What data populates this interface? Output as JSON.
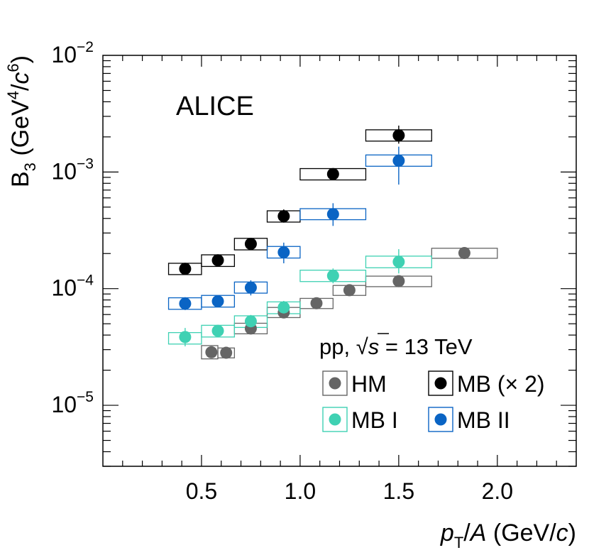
{
  "chart_data": {
    "type": "scatter",
    "title": "",
    "annotation": "ALICE",
    "energy_label": {
      "prefix": "pp, ",
      "sqrt": "√",
      "var": "s",
      "suffix": " = 13 TeV"
    },
    "xlabel": {
      "p": "p",
      "sub": "T",
      "slash": "/",
      "A": "A",
      "unit_pre": " (GeV/",
      "c": "c",
      "unit_post": ")"
    },
    "ylabel": {
      "B": "B",
      "sub": "3",
      "pre": " (GeV",
      "sup1": "4",
      "slash": "/",
      "c": "c",
      "sup2": "6",
      "post": ")"
    },
    "xlim": [
      0.0,
      2.4
    ],
    "ylim_log": [
      3e-06,
      0.01
    ],
    "x_ticks": [
      {
        "value": 0.5,
        "label": "0.5"
      },
      {
        "value": 1.0,
        "label": "1.0"
      },
      {
        "value": 1.5,
        "label": "1.5"
      },
      {
        "value": 2.0,
        "label": "2.0"
      }
    ],
    "y_ticks": [
      {
        "value": 0.01,
        "base": "10",
        "exp": "−2"
      },
      {
        "value": 0.001,
        "base": "10",
        "exp": "−3"
      },
      {
        "value": 0.0001,
        "base": "10",
        "exp": "−4"
      },
      {
        "value": 1e-05,
        "base": "10",
        "exp": "−5"
      }
    ],
    "legend": [
      {
        "series": "HM",
        "label": "HM"
      },
      {
        "series": "MB2",
        "label": "MB (× 2)"
      },
      {
        "series": "MBI",
        "label": "MB I"
      },
      {
        "series": "MBII",
        "label": "MB II"
      }
    ],
    "series": [
      {
        "name": "HM",
        "color": "#656565",
        "points": [
          {
            "x": 0.55,
            "y": 2.85e-05,
            "xlo": 0.5,
            "xhi": 0.583,
            "ylo": 2.5e-05,
            "yhi": 3.25e-05,
            "err_lo": 2.55e-05,
            "err_hi": 3.1e-05
          },
          {
            "x": 0.625,
            "y": 2.82e-05,
            "xlo": 0.583,
            "xhi": 0.667,
            "ylo": 2.55e-05,
            "yhi": 3.1e-05,
            "err_lo": 2.6e-05,
            "err_hi": 3.05e-05
          },
          {
            "x": 0.75,
            "y": 4.55e-05,
            "xlo": 0.667,
            "xhi": 0.833,
            "ylo": 4.1e-05,
            "yhi": 5.05e-05,
            "err_lo": 4.25e-05,
            "err_hi": 4.85e-05
          },
          {
            "x": 0.917,
            "y": 6.25e-05,
            "xlo": 0.833,
            "xhi": 1.0,
            "ylo": 5.65e-05,
            "yhi": 6.9e-05,
            "err_lo": 5.85e-05,
            "err_hi": 6.65e-05
          },
          {
            "x": 1.083,
            "y": 7.5e-05,
            "xlo": 1.0,
            "xhi": 1.167,
            "ylo": 6.75e-05,
            "yhi": 8.25e-05,
            "err_lo": 7.1e-05,
            "err_hi": 7.9e-05
          },
          {
            "x": 1.25,
            "y": 9.7e-05,
            "xlo": 1.167,
            "xhi": 1.333,
            "ylo": 8.75e-05,
            "yhi": 0.0001065,
            "err_lo": 9.2e-05,
            "err_hi": 0.000102
          },
          {
            "x": 1.5,
            "y": 0.000116,
            "xlo": 1.333,
            "xhi": 1.667,
            "ylo": 0.000104,
            "yhi": 0.000128,
            "err_lo": 0.000108,
            "err_hi": 0.000124
          },
          {
            "x": 1.833,
            "y": 0.000202,
            "xlo": 1.667,
            "xhi": 2.0,
            "ylo": 0.000182,
            "yhi": 0.000222,
            "err_lo": 0.000186,
            "err_hi": 0.000218
          }
        ]
      },
      {
        "name": "MB2",
        "color": "#000000",
        "points": [
          {
            "x": 0.417,
            "y": 0.000148,
            "xlo": 0.333,
            "xhi": 0.5,
            "ylo": 0.000132,
            "yhi": 0.000165,
            "err_lo": 0.000137,
            "err_hi": 0.000159
          },
          {
            "x": 0.583,
            "y": 0.000175,
            "xlo": 0.5,
            "xhi": 0.667,
            "ylo": 0.000155,
            "yhi": 0.000195,
            "err_lo": 0.000168,
            "err_hi": 0.000182
          },
          {
            "x": 0.75,
            "y": 0.000242,
            "xlo": 0.667,
            "xhi": 0.833,
            "ylo": 0.000215,
            "yhi": 0.00027,
            "err_lo": 0.000232,
            "err_hi": 0.000252
          },
          {
            "x": 0.917,
            "y": 0.000418,
            "xlo": 0.833,
            "xhi": 1.0,
            "ylo": 0.000372,
            "yhi": 0.000465,
            "err_lo": 0.000368,
            "err_hi": 0.000478
          },
          {
            "x": 1.167,
            "y": 0.00096,
            "xlo": 1.0,
            "xhi": 1.333,
            "ylo": 0.000855,
            "yhi": 0.00107,
            "err_lo": 0.00088,
            "err_hi": 0.00105
          },
          {
            "x": 1.5,
            "y": 0.00206,
            "xlo": 1.333,
            "xhi": 1.667,
            "ylo": 0.00184,
            "yhi": 0.0023,
            "err_lo": 0.00175,
            "err_hi": 0.0025
          }
        ]
      },
      {
        "name": "MBI",
        "color": "#3fd1b3",
        "points": [
          {
            "x": 0.417,
            "y": 3.85e-05,
            "xlo": 0.333,
            "xhi": 0.5,
            "ylo": 3.35e-05,
            "yhi": 4.2e-05,
            "err_lo": 3.2e-05,
            "err_hi": 4.6e-05
          },
          {
            "x": 0.583,
            "y": 4.35e-05,
            "xlo": 0.5,
            "xhi": 0.667,
            "ylo": 3.85e-05,
            "yhi": 4.85e-05,
            "err_lo": 3.95e-05,
            "err_hi": 4.8e-05
          },
          {
            "x": 0.75,
            "y": 5.25e-05,
            "xlo": 0.667,
            "xhi": 0.833,
            "ylo": 4.65e-05,
            "yhi": 5.85e-05,
            "err_lo": 4.65e-05,
            "err_hi": 5.95e-05
          },
          {
            "x": 0.917,
            "y": 6.9e-05,
            "xlo": 0.833,
            "xhi": 1.0,
            "ylo": 6.1e-05,
            "yhi": 7.7e-05,
            "err_lo": 6.1e-05,
            "err_hi": 7.85e-05
          },
          {
            "x": 1.167,
            "y": 0.000129,
            "xlo": 1.0,
            "xhi": 1.333,
            "ylo": 0.000115,
            "yhi": 0.000144,
            "err_lo": 0.000111,
            "err_hi": 0.000149
          },
          {
            "x": 1.5,
            "y": 0.00017,
            "xlo": 1.333,
            "xhi": 1.667,
            "ylo": 0.000151,
            "yhi": 0.00019,
            "err_lo": 0.000135,
            "err_hi": 0.000218
          }
        ]
      },
      {
        "name": "MBII",
        "color": "#0a64c4",
        "points": [
          {
            "x": 0.417,
            "y": 7.45e-05,
            "xlo": 0.333,
            "xhi": 0.5,
            "ylo": 6.65e-05,
            "yhi": 8.35e-05,
            "err_lo": 6.55e-05,
            "err_hi": 8.45e-05
          },
          {
            "x": 0.583,
            "y": 7.8e-05,
            "xlo": 0.5,
            "xhi": 0.667,
            "ylo": 6.95e-05,
            "yhi": 8.75e-05,
            "err_lo": 7.05e-05,
            "err_hi": 8.65e-05
          },
          {
            "x": 0.75,
            "y": 0.000102,
            "xlo": 0.667,
            "xhi": 0.833,
            "ylo": 9.15e-05,
            "yhi": 0.000114,
            "err_lo": 8.75e-05,
            "err_hi": 0.000118
          },
          {
            "x": 0.917,
            "y": 0.000205,
            "xlo": 0.833,
            "xhi": 1.0,
            "ylo": 0.000183,
            "yhi": 0.00023,
            "err_lo": 0.000165,
            "err_hi": 0.000248
          },
          {
            "x": 1.167,
            "y": 0.000435,
            "xlo": 1.0,
            "xhi": 1.333,
            "ylo": 0.00039,
            "yhi": 0.000485,
            "err_lo": 0.000345,
            "err_hi": 0.00054
          },
          {
            "x": 1.5,
            "y": 0.00125,
            "xlo": 1.333,
            "xhi": 1.667,
            "ylo": 0.00112,
            "yhi": 0.0014,
            "err_lo": 0.00078,
            "err_hi": 0.00165
          }
        ]
      }
    ]
  }
}
